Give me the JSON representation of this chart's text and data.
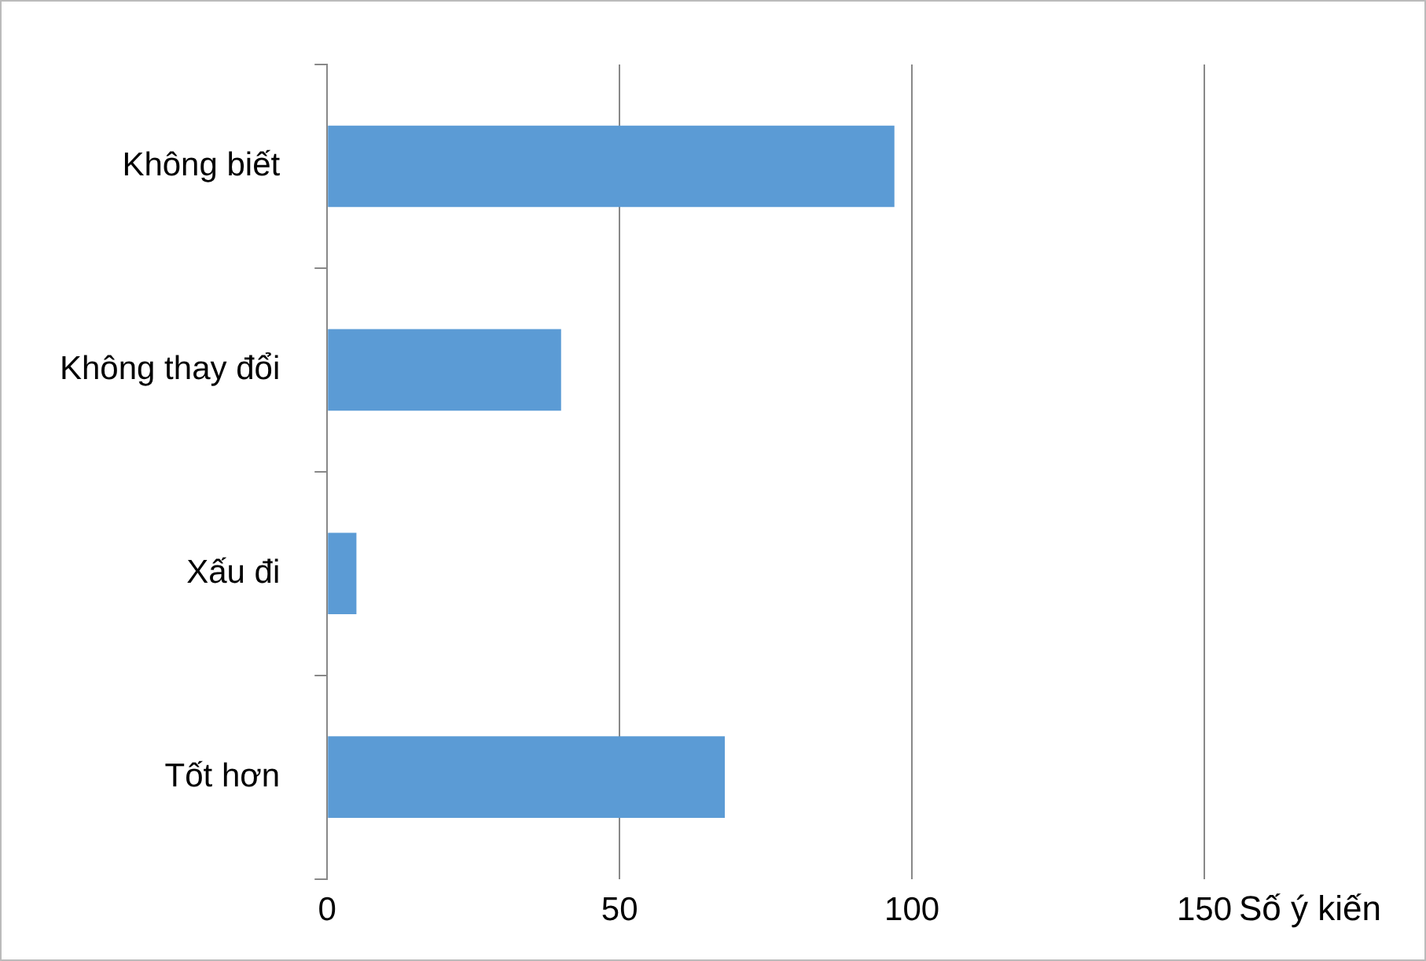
{
  "chart_data": {
    "type": "bar",
    "orientation": "horizontal",
    "categories": [
      "Không biết",
      "Không thay đổi",
      "Xấu đi",
      "Tốt hơn"
    ],
    "values": [
      97,
      40,
      5,
      68
    ],
    "color": "#5b9bd5",
    "xlim": [
      0,
      150
    ],
    "xticks": [
      0,
      50,
      100,
      150
    ],
    "xlabel": "Số ý kiến",
    "grid": "x",
    "legend": false
  }
}
